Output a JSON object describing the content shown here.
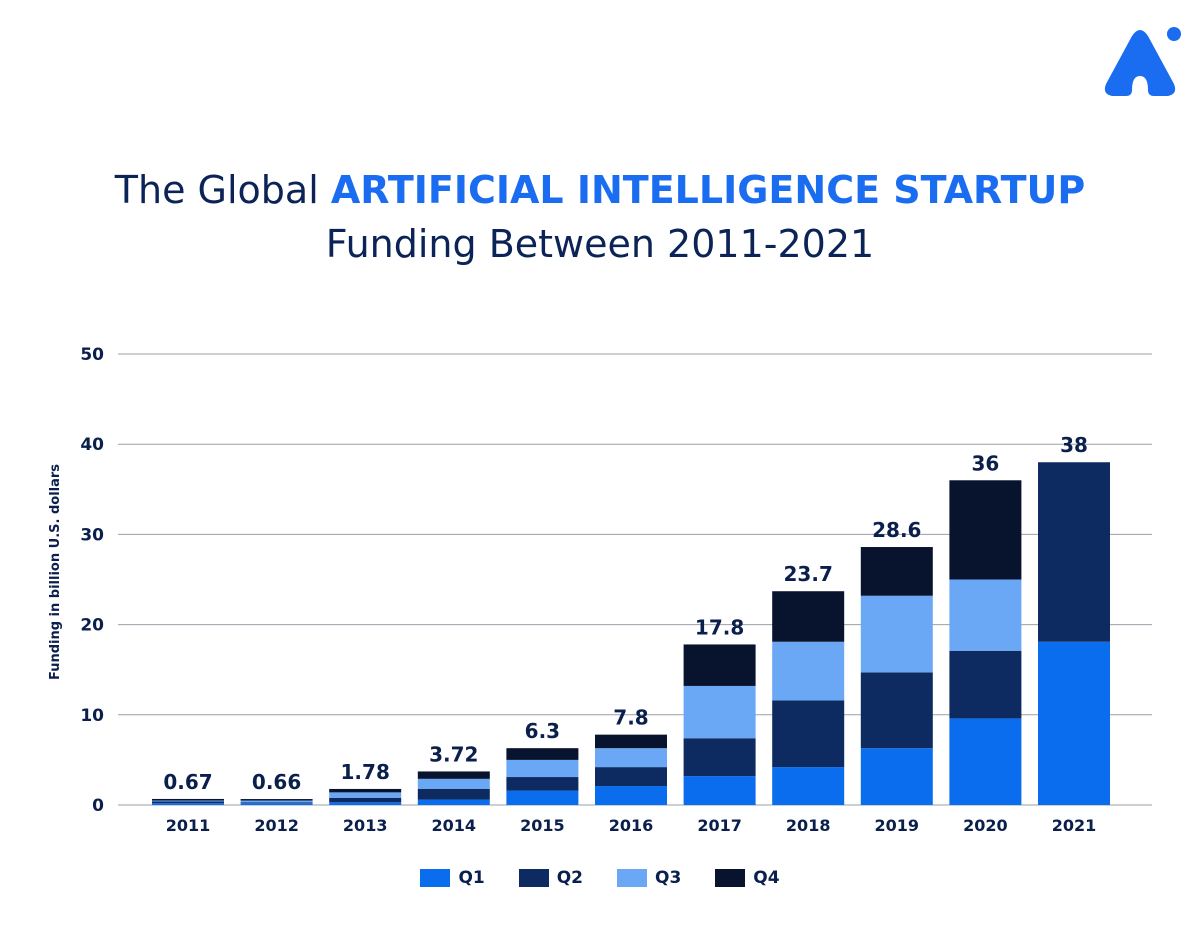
{
  "title": {
    "prefix": "The Global ",
    "highlight": "ARTIFICIAL INTELLIGENCE STARTUP",
    "line2": "Funding Between 2011-2021"
  },
  "logo": {
    "icon": "brand-logo-icon",
    "color": "#1a6cf0"
  },
  "colors": {
    "Q1": "#0a6ded",
    "Q2": "#0d2b61",
    "Q3": "#6aa7f5",
    "Q4": "#08142e",
    "grid": "#9aa0a8",
    "text": "#0b1f4d"
  },
  "chart_data": {
    "type": "bar",
    "stacked": true,
    "title": "The Global ARTIFICIAL INTELLIGENCE STARTUP Funding Between 2011-2021",
    "xlabel": "",
    "ylabel": "Funding in billion U.S. dollars",
    "ylim": [
      0,
      50
    ],
    "yticks": [
      0,
      10,
      20,
      30,
      40,
      50
    ],
    "grid": true,
    "legend_position": "bottom",
    "categories": [
      "2011",
      "2012",
      "2013",
      "2014",
      "2015",
      "2016",
      "2017",
      "2018",
      "2019",
      "2020",
      "2021"
    ],
    "series": [
      {
        "name": "Q1",
        "values": [
          0.2,
          0.2,
          0.3,
          0.6,
          1.6,
          2.1,
          3.2,
          4.2,
          6.3,
          9.6,
          18.1
        ]
      },
      {
        "name": "Q2",
        "values": [
          0.2,
          0.1,
          0.5,
          1.2,
          1.5,
          2.1,
          4.2,
          7.4,
          8.4,
          7.5,
          19.9
        ]
      },
      {
        "name": "Q3",
        "values": [
          0.1,
          0.2,
          0.6,
          1.1,
          1.9,
          2.1,
          5.8,
          6.5,
          8.5,
          7.9,
          0
        ]
      },
      {
        "name": "Q4",
        "values": [
          0.17,
          0.16,
          0.38,
          0.82,
          1.3,
          1.5,
          4.6,
          5.6,
          5.4,
          11.0,
          0
        ]
      }
    ],
    "totals": [
      "0.67",
      "0.66",
      "1.78",
      "3.72",
      "6.3",
      "7.8",
      "17.8",
      "23.7",
      "28.6",
      "36",
      "38"
    ]
  }
}
